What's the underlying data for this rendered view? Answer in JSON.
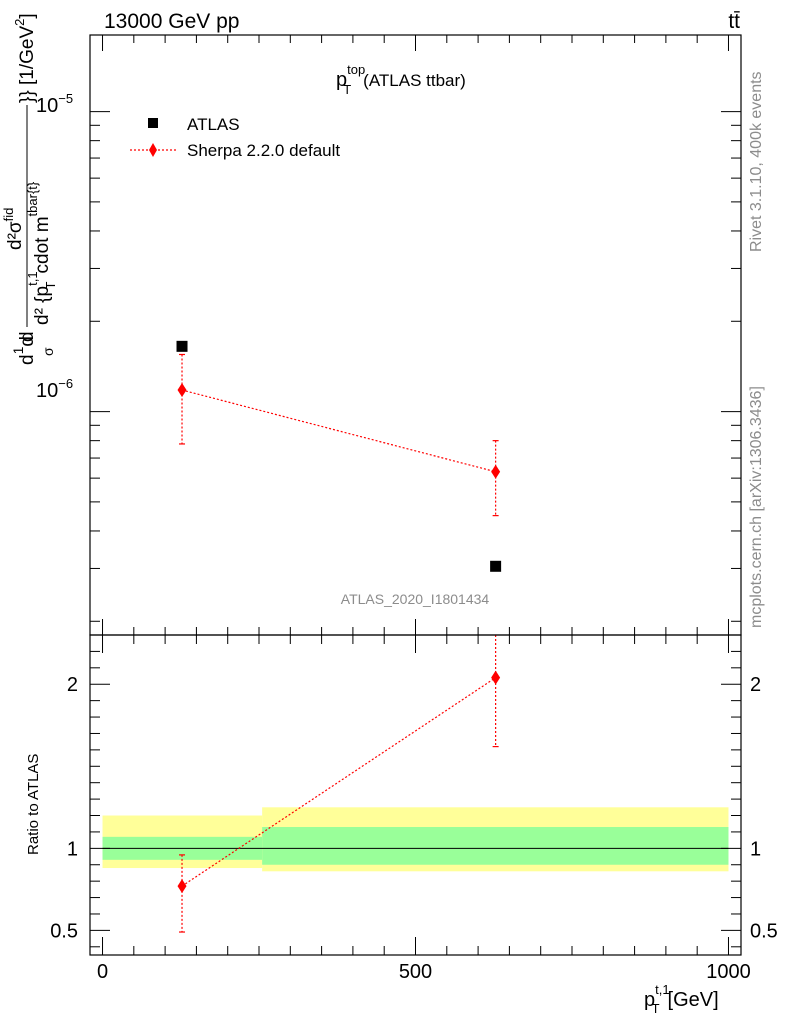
{
  "header": {
    "left": "13000 GeV pp",
    "right": "tt̄"
  },
  "side_labels": {
    "rivet": "Rivet 3.1.10,  400k events",
    "mcplots": "mcplots.cern.ch [arXiv:1306.3436]"
  },
  "chart_data": [
    {
      "type": "scatter",
      "title_main": "p",
      "title_sup": "top",
      "title_sub": "T",
      "title_rest": "(ATLAS ttbar)",
      "watermark": "ATLAS_2020_I1801434",
      "ylabel": "d¹/σ d²σᴵᵈ / d² {p_T^{t,1} cdot m^{tbar{t}}} [1/GeV²]",
      "ylabel_parts": {
        "num_a": "d",
        "num_b": "1",
        "num_c": "d",
        "den_a": "σ",
        "den_b": "d",
        "frac2_num": "d²σ",
        "frac2_num_sup": "fid",
        "frac2_den": "d² {p",
        "frac2_den_sup": "t,1",
        "frac2_den_sub": "T",
        "frac2_den_rest": "cdot m",
        "frac2_den_sup2": "tbar{t}",
        "tail": "}} [1/GeV",
        "tail_sup": "2",
        "tail_end": "]"
      },
      "yscale": "log",
      "ylim": [
        1.8e-07,
        1.8e-05
      ],
      "xlim": [
        -20,
        1020
      ],
      "ytick_labels": [
        "10",
        "10"
      ],
      "ytick_exps": [
        "−5",
        "−6"
      ],
      "legend": [
        {
          "name": "ATLAS",
          "marker": "square",
          "color": "#000000"
        },
        {
          "name": "Sherpa 2.2.0 default",
          "marker": "diamond",
          "color": "#ff0000"
        }
      ],
      "legend_position": "top-left",
      "series": [
        {
          "name": "ATLAS",
          "x": [
            127,
            628
          ],
          "y": [
            1.65e-06,
            3.05e-07
          ]
        },
        {
          "name": "Sherpa 2.2.0 default",
          "x": [
            127,
            628
          ],
          "y": [
            1.18e-06,
            6.3e-07
          ],
          "yerr_low": [
            7.8e-07,
            4.5e-07
          ],
          "yerr_high": [
            1.55e-06,
            8e-07
          ]
        }
      ]
    },
    {
      "type": "scatter",
      "ylabel": "Ratio to ATLAS",
      "xlabel_main": "p",
      "xlabel_sup": "t,1",
      "xlabel_sub": "T",
      "xlabel_rest": "[GeV]",
      "xlim": [
        -20,
        1020
      ],
      "ylim": [
        0.35,
        2.3
      ],
      "xticks": [
        0,
        500,
        1000
      ],
      "xtick_labels": [
        "0",
        "500",
        "1000"
      ],
      "yticks": [
        0.5,
        1,
        2
      ],
      "ytick_labels": [
        "0.5",
        "1",
        "2"
      ],
      "bands": [
        {
          "x_from": 0,
          "x_to": 255,
          "inner": [
            0.93,
            1.07
          ],
          "outer": [
            0.88,
            1.2
          ]
        },
        {
          "x_from": 255,
          "x_to": 1000,
          "inner": [
            0.9,
            1.13
          ],
          "outer": [
            0.86,
            1.25
          ]
        }
      ],
      "band_colors": {
        "inner": "#99ff99",
        "outer": "#ffff99"
      },
      "series": [
        {
          "name": "Sherpa 2.2.0 default",
          "x": [
            127,
            628
          ],
          "y": [
            0.77,
            2.04
          ],
          "yerr_low": [
            0.49,
            1.62
          ],
          "yerr_high": [
            0.96,
            2.5
          ]
        }
      ]
    }
  ]
}
